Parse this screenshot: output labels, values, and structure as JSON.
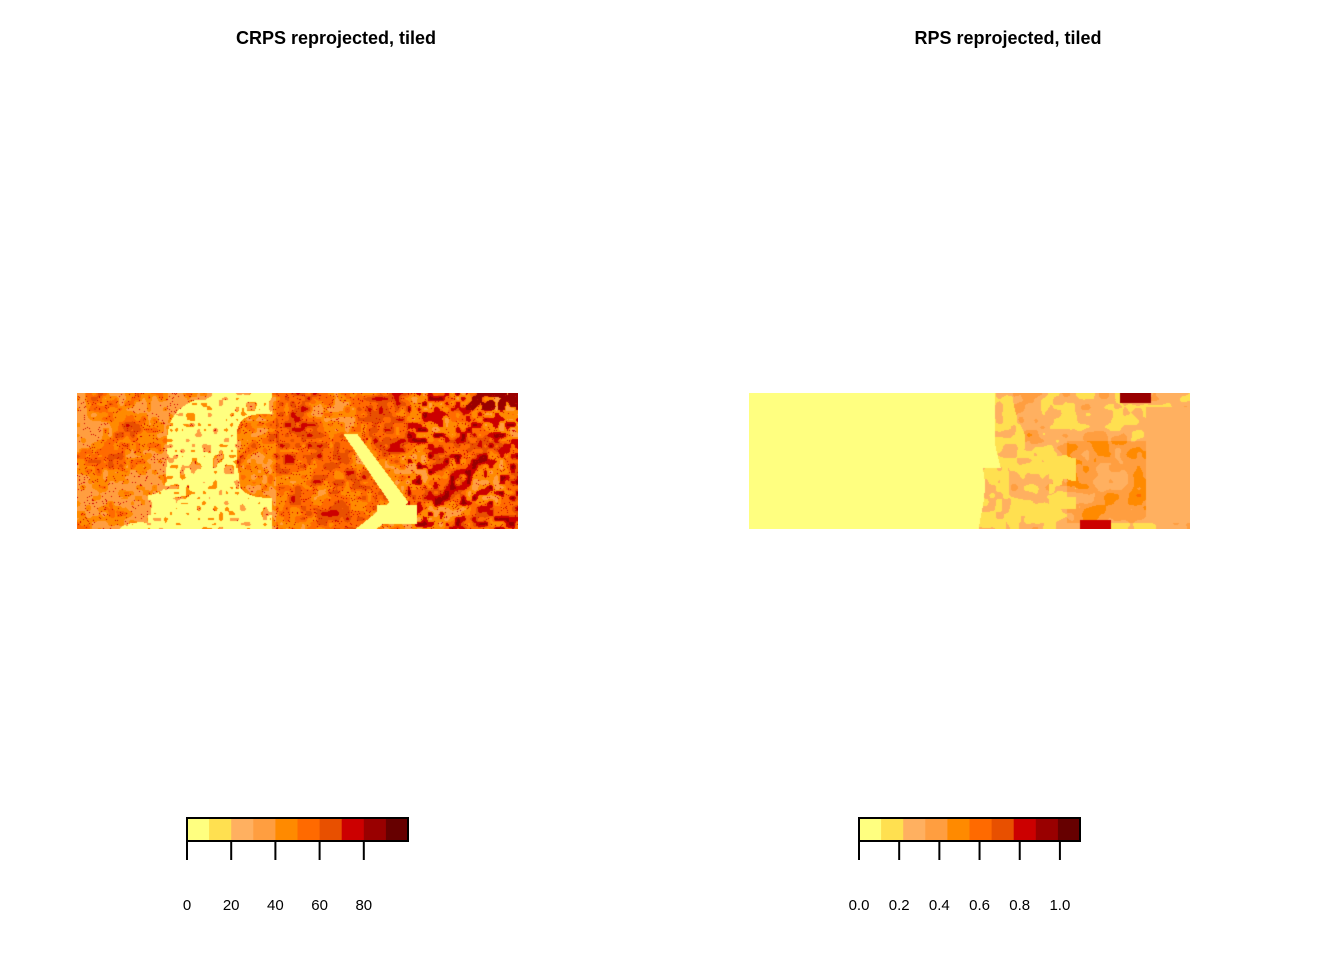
{
  "panels": [
    {
      "title": "CRPS reprojected, tiled",
      "legend_breaks": [
        0,
        20,
        40,
        60,
        80
      ],
      "legend_range": [
        0,
        100
      ],
      "legend_tick_labels": [
        "0",
        "20",
        "40",
        "60",
        "80"
      ]
    },
    {
      "title": "RPS reprojected, tiled",
      "legend_breaks": [
        0.0,
        0.2,
        0.4,
        0.6,
        0.8,
        1.0
      ],
      "legend_range": [
        0.0,
        1.1
      ],
      "legend_tick_labels": [
        "0.0",
        "0.2",
        "0.4",
        "0.6",
        "0.8",
        "1.0"
      ]
    }
  ],
  "palette": [
    "#FFFF80",
    "#FFE050",
    "#FFB060",
    "#FF9E40",
    "#FF8A00",
    "#FF6A00",
    "#E85000",
    "#CC0000",
    "#990000",
    "#660000"
  ],
  "chart_data": [
    {
      "type": "heatmap",
      "title": "CRPS reprojected, tiled",
      "xlabel": "",
      "ylabel": "",
      "zlim": [
        0,
        100
      ],
      "legend_ticks": [
        0,
        20,
        40,
        60,
        80
      ],
      "legend_placement": "bottom",
      "grid": false,
      "pattern": "left third mostly low values (light yellow) with orange patches; middle and right mostly 50-80 with scattered dark red cells; a light-yellow river channel runs diagonally in the center-right"
    },
    {
      "type": "heatmap",
      "title": "RPS reprojected, tiled",
      "xlabel": "",
      "ylabel": "",
      "zlim": [
        0.0,
        1.1
      ],
      "legend_ticks": [
        0.0,
        0.2,
        0.4,
        0.6,
        0.8,
        1.0
      ],
      "legend_placement": "bottom",
      "grid": false,
      "pattern": "left ~55% uniformly near 0 (light yellow); right portion 0.3-0.6 (orange) with a few dark red spots near the top and bottom edges"
    }
  ]
}
